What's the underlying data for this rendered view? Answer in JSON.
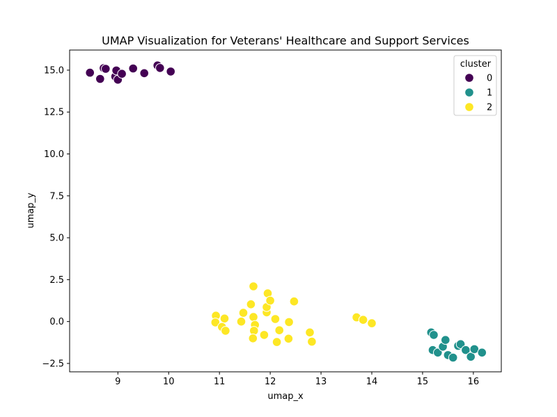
{
  "chart_data": {
    "type": "scatter",
    "title": "UMAP Visualization for Veterans' Healthcare and Support Services",
    "xlabel": "umap_x",
    "ylabel": "umap_y",
    "xlim": [
      8.05,
      16.55
    ],
    "ylim": [
      -3.0,
      16.2
    ],
    "xticks": [
      9,
      10,
      11,
      12,
      13,
      14,
      15,
      16
    ],
    "yticks": [
      -2.5,
      0.0,
      2.5,
      5.0,
      7.5,
      10.0,
      12.5,
      15.0
    ],
    "ytick_labels": [
      "−2.5",
      "0.0",
      "2.5",
      "5.0",
      "7.5",
      "10.0",
      "12.5",
      "15.0"
    ],
    "grid": false,
    "legend": {
      "title": "cluster",
      "placement": "top-right"
    },
    "series": [
      {
        "name": "0",
        "color": "#440154",
        "points": [
          [
            8.45,
            14.85
          ],
          [
            8.65,
            14.48
          ],
          [
            8.72,
            15.12
          ],
          [
            8.76,
            15.08
          ],
          [
            8.95,
            14.62
          ],
          [
            8.97,
            14.98
          ],
          [
            9.0,
            14.43
          ],
          [
            9.08,
            14.78
          ],
          [
            9.3,
            15.1
          ],
          [
            9.52,
            14.82
          ],
          [
            9.78,
            15.28
          ],
          [
            9.83,
            15.13
          ],
          [
            10.04,
            14.92
          ]
        ]
      },
      {
        "name": "1",
        "color": "#21918c",
        "points": [
          [
            15.17,
            -0.65
          ],
          [
            15.22,
            -0.8
          ],
          [
            15.2,
            -1.7
          ],
          [
            15.3,
            -1.85
          ],
          [
            15.4,
            -1.5
          ],
          [
            15.45,
            -1.1
          ],
          [
            15.5,
            -2.0
          ],
          [
            15.6,
            -2.15
          ],
          [
            15.7,
            -1.45
          ],
          [
            15.75,
            -1.35
          ],
          [
            15.85,
            -1.7
          ],
          [
            15.95,
            -2.1
          ],
          [
            16.02,
            -1.65
          ],
          [
            16.17,
            -1.85
          ]
        ]
      },
      {
        "name": "2",
        "color": "#fde725",
        "points": [
          [
            10.93,
            0.35
          ],
          [
            10.92,
            -0.05
          ],
          [
            11.05,
            -0.32
          ],
          [
            11.1,
            0.18
          ],
          [
            11.12,
            -0.55
          ],
          [
            11.43,
            0.0
          ],
          [
            11.47,
            0.52
          ],
          [
            11.62,
            1.03
          ],
          [
            11.67,
            2.1
          ],
          [
            11.67,
            0.27
          ],
          [
            11.7,
            -0.2
          ],
          [
            11.68,
            -0.55
          ],
          [
            11.66,
            -1.0
          ],
          [
            11.88,
            -0.8
          ],
          [
            11.93,
            0.55
          ],
          [
            11.93,
            0.86
          ],
          [
            11.95,
            1.68
          ],
          [
            12.0,
            1.25
          ],
          [
            12.1,
            0.15
          ],
          [
            12.13,
            -1.22
          ],
          [
            12.18,
            -0.52
          ],
          [
            12.36,
            -1.02
          ],
          [
            12.37,
            -0.03
          ],
          [
            12.47,
            1.2
          ],
          [
            12.78,
            -0.65
          ],
          [
            12.82,
            -1.2
          ],
          [
            13.7,
            0.25
          ],
          [
            13.83,
            0.1
          ],
          [
            14.0,
            -0.1
          ]
        ]
      }
    ]
  }
}
